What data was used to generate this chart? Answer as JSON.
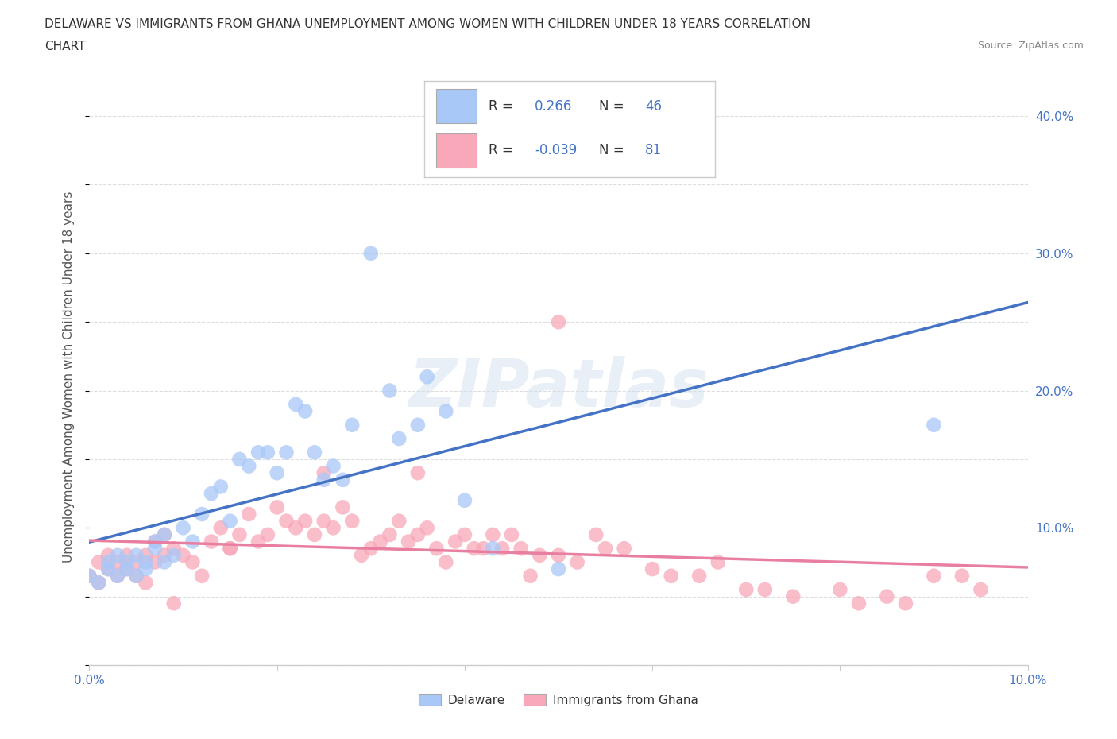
{
  "title_line1": "DELAWARE VS IMMIGRANTS FROM GHANA UNEMPLOYMENT AMONG WOMEN WITH CHILDREN UNDER 18 YEARS CORRELATION",
  "title_line2": "CHART",
  "source": "Source: ZipAtlas.com",
  "ylabel": "Unemployment Among Women with Children Under 18 years",
  "xlim": [
    0.0,
    0.1
  ],
  "ylim": [
    0.0,
    0.42
  ],
  "xticks": [
    0.0,
    0.02,
    0.04,
    0.06,
    0.08,
    0.1
  ],
  "xticklabels": [
    "0.0%",
    "",
    "",
    "",
    "",
    "10.0%"
  ],
  "yticks": [
    0.0,
    0.1,
    0.2,
    0.3,
    0.4
  ],
  "yticklabels_right": [
    "",
    "10.0%",
    "20.0%",
    "30.0%",
    "40.0%"
  ],
  "delaware_R": 0.266,
  "delaware_N": 46,
  "ghana_R": -0.039,
  "ghana_N": 81,
  "delaware_color": "#a8c8f8",
  "ghana_color": "#f8a8b8",
  "delaware_line_color": "#4472c4",
  "ghana_line_color": "#e87fa0",
  "watermark_text": "ZIPatlas",
  "background_color": "#ffffff",
  "grid_color": "#dddddd",
  "legend_label_delaware": "Delaware",
  "legend_label_ghana": "Immigrants from Ghana",
  "tick_label_color": "#4472c4",
  "delaware_scatter_x": [
    0.0,
    0.001,
    0.002,
    0.002,
    0.003,
    0.003,
    0.004,
    0.004,
    0.005,
    0.005,
    0.006,
    0.006,
    0.007,
    0.007,
    0.008,
    0.008,
    0.009,
    0.01,
    0.011,
    0.012,
    0.013,
    0.014,
    0.015,
    0.016,
    0.017,
    0.018,
    0.019,
    0.02,
    0.021,
    0.022,
    0.023,
    0.024,
    0.025,
    0.026,
    0.027,
    0.028,
    0.03,
    0.032,
    0.033,
    0.035,
    0.036,
    0.038,
    0.04,
    0.043,
    0.05,
    0.09
  ],
  "delaware_scatter_y": [
    0.065,
    0.06,
    0.07,
    0.075,
    0.08,
    0.065,
    0.075,
    0.07,
    0.065,
    0.08,
    0.07,
    0.075,
    0.085,
    0.09,
    0.075,
    0.095,
    0.08,
    0.1,
    0.09,
    0.11,
    0.125,
    0.13,
    0.105,
    0.15,
    0.145,
    0.155,
    0.155,
    0.14,
    0.155,
    0.19,
    0.185,
    0.155,
    0.135,
    0.145,
    0.135,
    0.175,
    0.3,
    0.2,
    0.165,
    0.175,
    0.21,
    0.185,
    0.12,
    0.085,
    0.07,
    0.175
  ],
  "ghana_scatter_x": [
    0.0,
    0.001,
    0.001,
    0.002,
    0.002,
    0.003,
    0.003,
    0.004,
    0.004,
    0.005,
    0.005,
    0.006,
    0.006,
    0.007,
    0.007,
    0.008,
    0.008,
    0.009,
    0.01,
    0.011,
    0.012,
    0.013,
    0.014,
    0.015,
    0.016,
    0.017,
    0.018,
    0.019,
    0.02,
    0.021,
    0.022,
    0.023,
    0.024,
    0.025,
    0.026,
    0.027,
    0.028,
    0.029,
    0.03,
    0.031,
    0.032,
    0.033,
    0.034,
    0.035,
    0.036,
    0.037,
    0.038,
    0.039,
    0.04,
    0.041,
    0.042,
    0.043,
    0.044,
    0.045,
    0.046,
    0.047,
    0.048,
    0.05,
    0.052,
    0.054,
    0.055,
    0.057,
    0.06,
    0.062,
    0.065,
    0.067,
    0.07,
    0.072,
    0.075,
    0.08,
    0.082,
    0.085,
    0.087,
    0.09,
    0.093,
    0.095,
    0.05,
    0.035,
    0.025,
    0.015,
    0.009
  ],
  "ghana_scatter_y": [
    0.065,
    0.06,
    0.075,
    0.07,
    0.08,
    0.065,
    0.075,
    0.07,
    0.08,
    0.065,
    0.075,
    0.06,
    0.08,
    0.075,
    0.09,
    0.08,
    0.095,
    0.085,
    0.08,
    0.075,
    0.065,
    0.09,
    0.1,
    0.085,
    0.095,
    0.11,
    0.09,
    0.095,
    0.115,
    0.105,
    0.1,
    0.105,
    0.095,
    0.105,
    0.1,
    0.115,
    0.105,
    0.08,
    0.085,
    0.09,
    0.095,
    0.105,
    0.09,
    0.095,
    0.1,
    0.085,
    0.075,
    0.09,
    0.095,
    0.085,
    0.085,
    0.095,
    0.085,
    0.095,
    0.085,
    0.065,
    0.08,
    0.08,
    0.075,
    0.095,
    0.085,
    0.085,
    0.07,
    0.065,
    0.065,
    0.075,
    0.055,
    0.055,
    0.05,
    0.055,
    0.045,
    0.05,
    0.045,
    0.065,
    0.065,
    0.055,
    0.25,
    0.14,
    0.14,
    0.085,
    0.045
  ]
}
